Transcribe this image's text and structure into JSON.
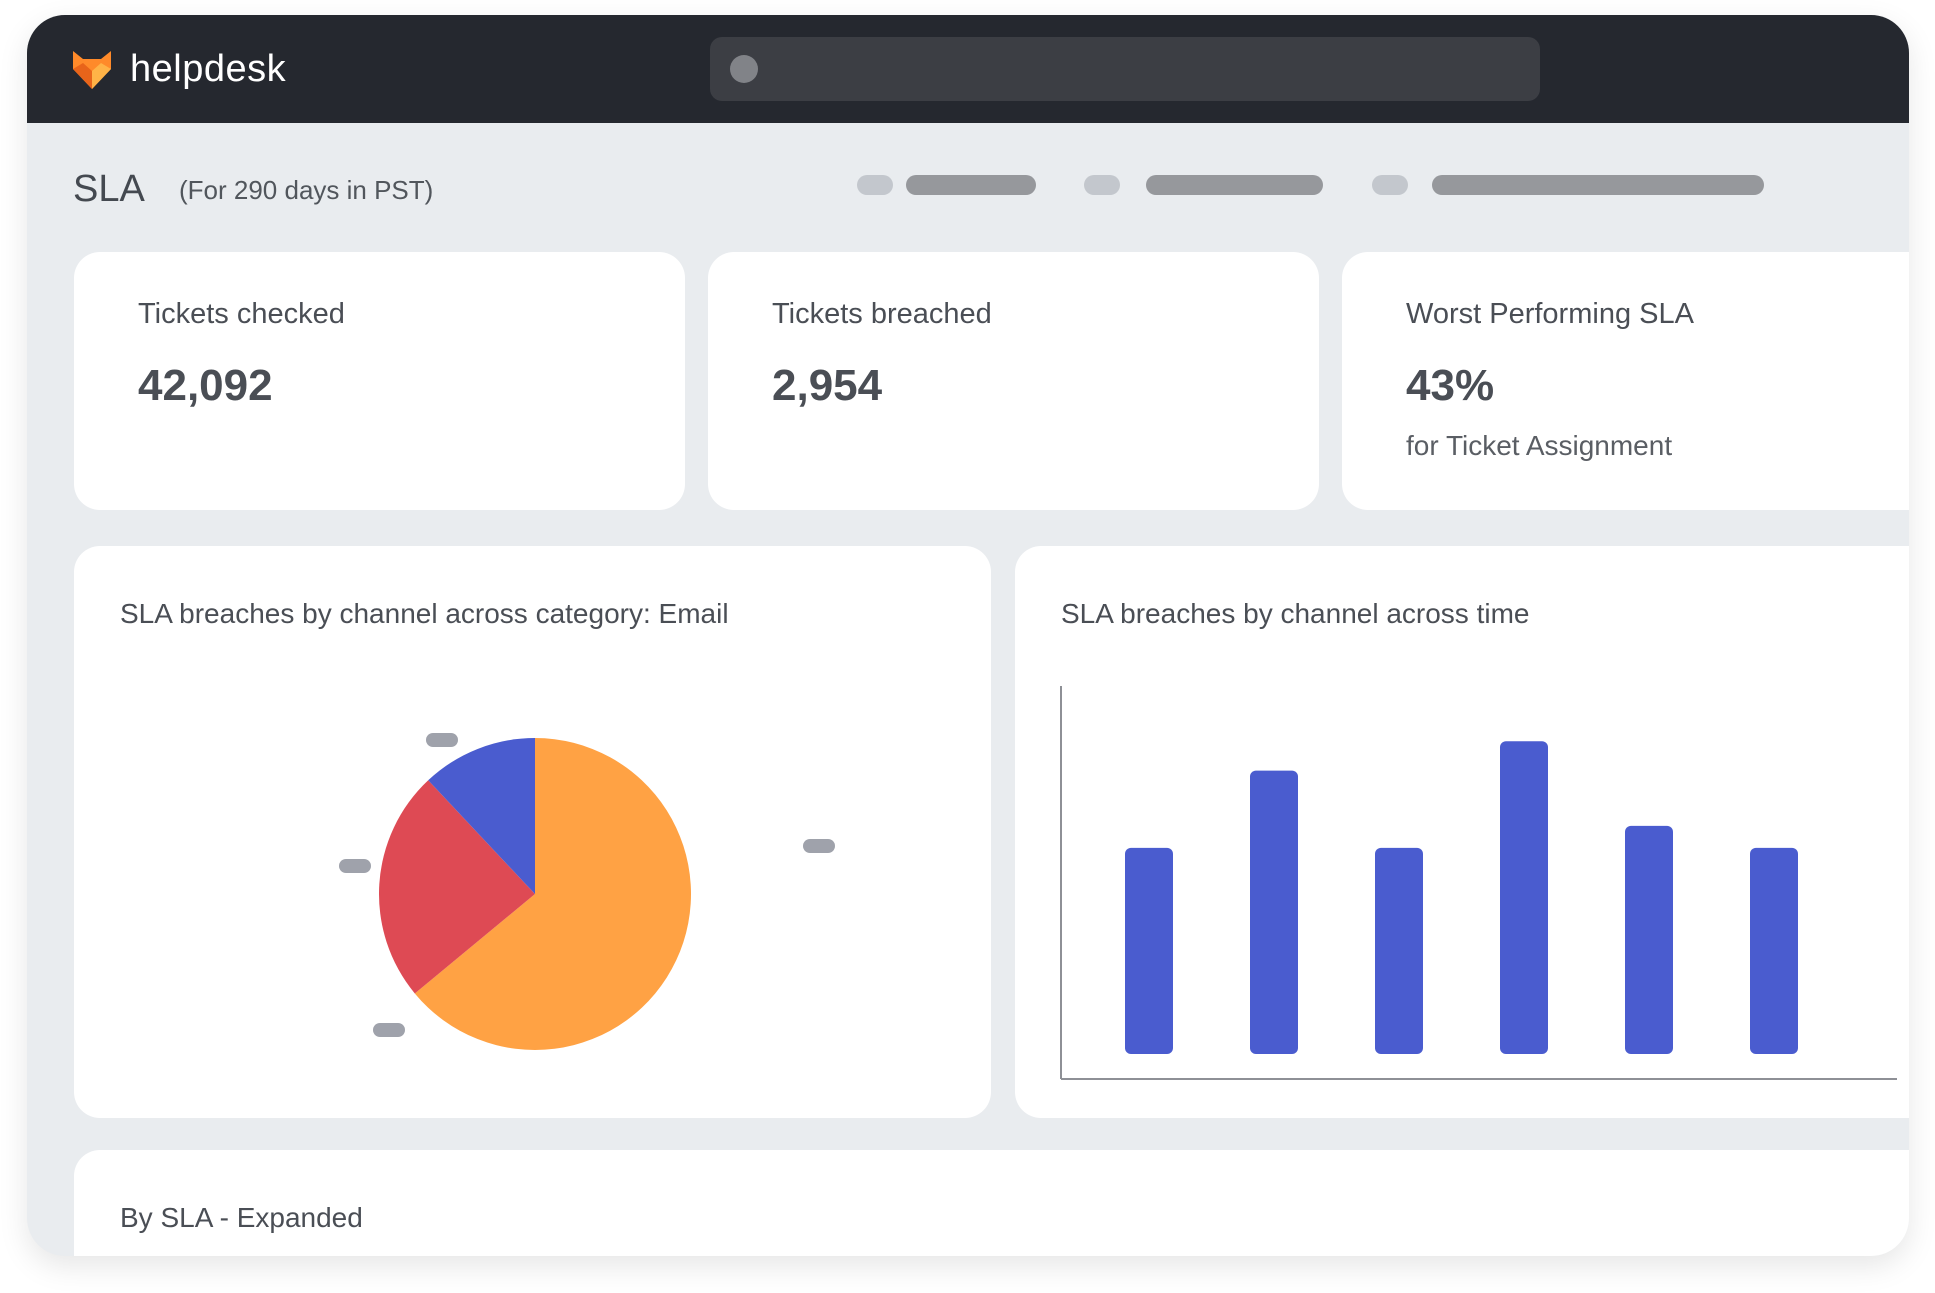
{
  "app": {
    "brand": "helpdesk",
    "logo_icon": "fox-logo-icon"
  },
  "search": {
    "icon": "search-dot-icon"
  },
  "header": {
    "title": "SLA",
    "subtitle": "(For 290 days in PST)"
  },
  "stats": [
    {
      "label": "Tickets checked",
      "value": "42,092"
    },
    {
      "label": "Tickets breached",
      "value": "2,954"
    },
    {
      "label": "Worst Performing SLA",
      "value": "43%",
      "sub": "for Ticket Assignment"
    }
  ],
  "panels": {
    "pie_title": "SLA breaches by channel across category: Email",
    "bar_title": "SLA breaches by channel across time",
    "table_title": "By SLA - Expanded"
  },
  "colors": {
    "topbar": "#25282f",
    "orange": "#ffa244",
    "red": "#de4a54",
    "blue": "#4a5ccf",
    "axis": "#8e9096",
    "label_placeholder": "#9fa2ab"
  },
  "chart_data": [
    {
      "type": "pie",
      "title": "SLA breaches by channel across category: Email",
      "slices": [
        {
          "value": 64,
          "color": "#ffa244"
        },
        {
          "value": 24,
          "color": "#de4a54"
        },
        {
          "value": 12,
          "color": "#4a5ccf"
        }
      ]
    },
    {
      "type": "bar",
      "title": "SLA breaches by channel across time",
      "values": [
        56,
        77,
        56,
        85,
        62,
        56
      ],
      "ylim": [
        0,
        100
      ],
      "color": "#4a5ccf"
    }
  ]
}
